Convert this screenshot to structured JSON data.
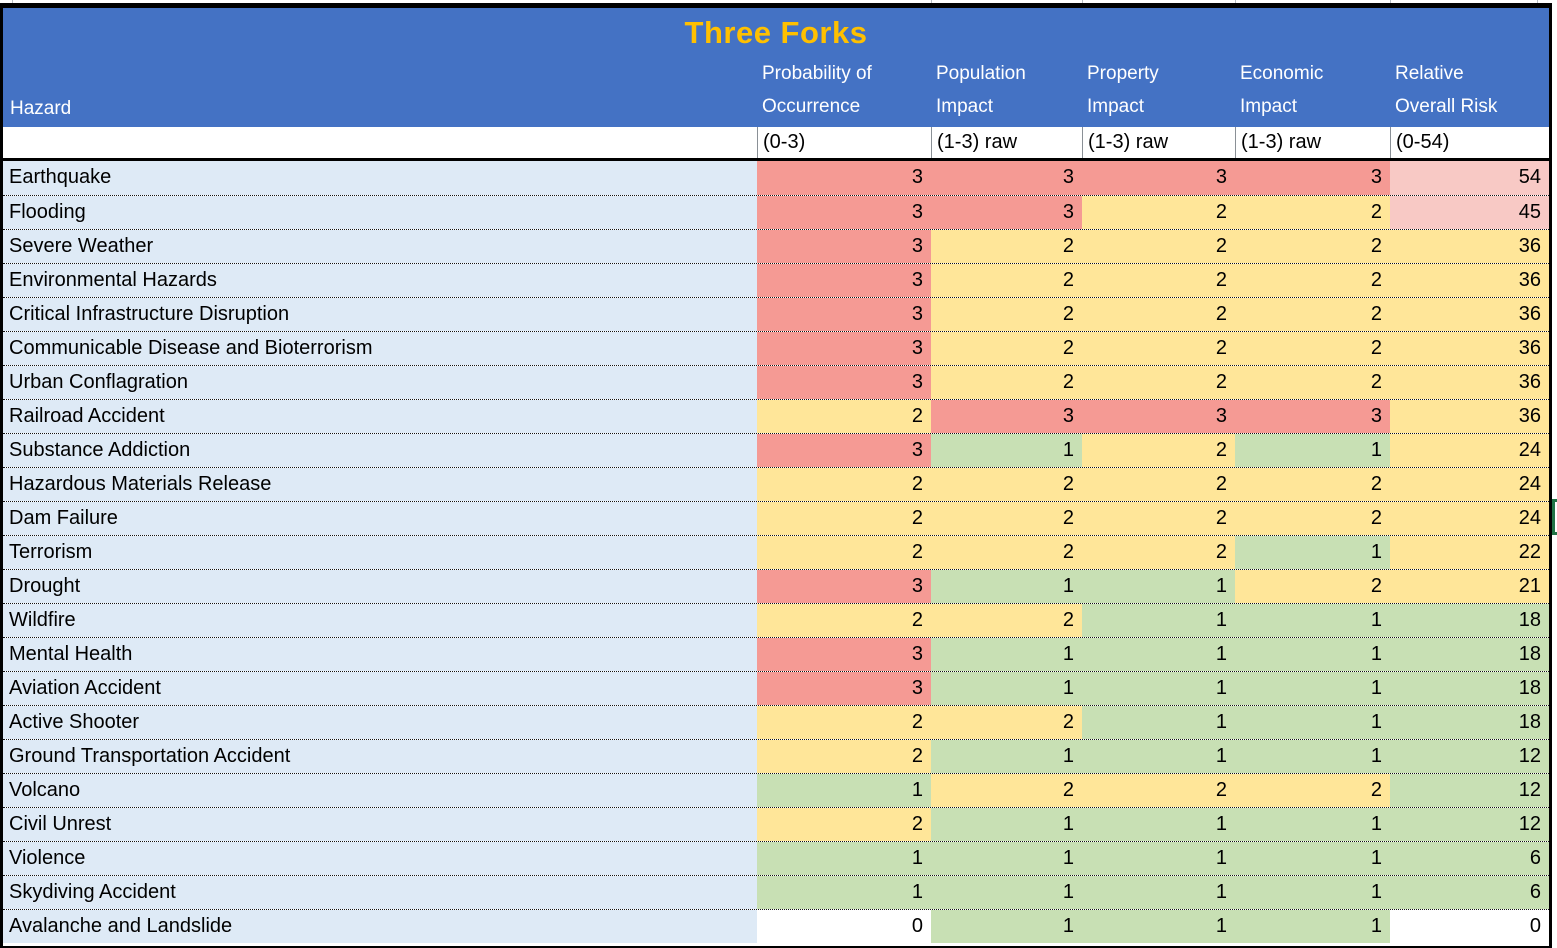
{
  "title": "Three Forks",
  "hazard_header": "Hazard",
  "columns": [
    {
      "label_line1": "Probability of",
      "label_line2": "Occurrence",
      "unit": "(0-3)"
    },
    {
      "label_line1": "Population",
      "label_line2": "Impact",
      "unit": "(1-3) raw"
    },
    {
      "label_line1": "Property",
      "label_line2": "Impact",
      "unit": "(1-3) raw"
    },
    {
      "label_line1": "Economic",
      "label_line2": "Impact",
      "unit": "(1-3) raw"
    },
    {
      "label_line1": "Relative",
      "label_line2": "Overall Risk",
      "unit": "(0-54)"
    }
  ],
  "colors": {
    "header_bg": "#4472C4",
    "title_text": "#FFC000",
    "hazard_bg": "#DEEAF6",
    "score3": "#F59A94",
    "score2": "#FFE699",
    "score1": "#C8E0B4",
    "score0": "#FFFFFF",
    "risk_high": "#F8C9C5",
    "selection_green": "#217346"
  },
  "rows": [
    {
      "hazard": "Earthquake",
      "values": [
        "3",
        "3",
        "3",
        "3",
        "54"
      ],
      "fills": [
        "score3",
        "score3",
        "score3",
        "score3",
        "risk_high"
      ]
    },
    {
      "hazard": "Flooding",
      "values": [
        "3",
        "3",
        "2",
        "2",
        "45"
      ],
      "fills": [
        "score3",
        "score3",
        "score2",
        "score2",
        "risk_high"
      ]
    },
    {
      "hazard": "Severe Weather",
      "values": [
        "3",
        "2",
        "2",
        "2",
        "36"
      ],
      "fills": [
        "score3",
        "score2",
        "score2",
        "score2",
        "score2"
      ]
    },
    {
      "hazard": "Environmental Hazards",
      "values": [
        "3",
        "2",
        "2",
        "2",
        "36"
      ],
      "fills": [
        "score3",
        "score2",
        "score2",
        "score2",
        "score2"
      ]
    },
    {
      "hazard": "Critical Infrastructure Disruption",
      "values": [
        "3",
        "2",
        "2",
        "2",
        "36"
      ],
      "fills": [
        "score3",
        "score2",
        "score2",
        "score2",
        "score2"
      ]
    },
    {
      "hazard": "Communicable Disease and Bioterrorism",
      "values": [
        "3",
        "2",
        "2",
        "2",
        "36"
      ],
      "fills": [
        "score3",
        "score2",
        "score2",
        "score2",
        "score2"
      ]
    },
    {
      "hazard": "Urban Conflagration",
      "values": [
        "3",
        "2",
        "2",
        "2",
        "36"
      ],
      "fills": [
        "score3",
        "score2",
        "score2",
        "score2",
        "score2"
      ]
    },
    {
      "hazard": "Railroad Accident",
      "values": [
        "2",
        "3",
        "3",
        "3",
        "36"
      ],
      "fills": [
        "score2",
        "score3",
        "score3",
        "score3",
        "score2"
      ]
    },
    {
      "hazard": "Substance Addiction",
      "values": [
        "3",
        "1",
        "2",
        "1",
        "24"
      ],
      "fills": [
        "score3",
        "score1",
        "score2",
        "score1",
        "score2"
      ]
    },
    {
      "hazard": "Hazardous Materials Release",
      "values": [
        "2",
        "2",
        "2",
        "2",
        "24"
      ],
      "fills": [
        "score2",
        "score2",
        "score2",
        "score2",
        "score2"
      ]
    },
    {
      "hazard": "Dam Failure",
      "values": [
        "2",
        "2",
        "2",
        "2",
        "24"
      ],
      "fills": [
        "score2",
        "score2",
        "score2",
        "score2",
        "score2"
      ]
    },
    {
      "hazard": "Terrorism",
      "values": [
        "2",
        "2",
        "2",
        "1",
        "22"
      ],
      "fills": [
        "score2",
        "score2",
        "score2",
        "score1",
        "score2"
      ]
    },
    {
      "hazard": "Drought",
      "values": [
        "3",
        "1",
        "1",
        "2",
        "21"
      ],
      "fills": [
        "score3",
        "score1",
        "score1",
        "score2",
        "score2"
      ]
    },
    {
      "hazard": "Wildfire",
      "values": [
        "2",
        "2",
        "1",
        "1",
        "18"
      ],
      "fills": [
        "score2",
        "score2",
        "score1",
        "score1",
        "score1"
      ]
    },
    {
      "hazard": "Mental Health",
      "values": [
        "3",
        "1",
        "1",
        "1",
        "18"
      ],
      "fills": [
        "score3",
        "score1",
        "score1",
        "score1",
        "score1"
      ]
    },
    {
      "hazard": "Aviation Accident",
      "values": [
        "3",
        "1",
        "1",
        "1",
        "18"
      ],
      "fills": [
        "score3",
        "score1",
        "score1",
        "score1",
        "score1"
      ]
    },
    {
      "hazard": "Active Shooter",
      "values": [
        "2",
        "2",
        "1",
        "1",
        "18"
      ],
      "fills": [
        "score2",
        "score2",
        "score1",
        "score1",
        "score1"
      ]
    },
    {
      "hazard": "Ground Transportation Accident",
      "values": [
        "2",
        "1",
        "1",
        "1",
        "12"
      ],
      "fills": [
        "score2",
        "score1",
        "score1",
        "score1",
        "score1"
      ]
    },
    {
      "hazard": "Volcano",
      "values": [
        "1",
        "2",
        "2",
        "2",
        "12"
      ],
      "fills": [
        "score1",
        "score2",
        "score2",
        "score2",
        "score1"
      ]
    },
    {
      "hazard": "Civil Unrest",
      "values": [
        "2",
        "1",
        "1",
        "1",
        "12"
      ],
      "fills": [
        "score2",
        "score1",
        "score1",
        "score1",
        "score1"
      ]
    },
    {
      "hazard": "Violence",
      "values": [
        "1",
        "1",
        "1",
        "1",
        "6"
      ],
      "fills": [
        "score1",
        "score1",
        "score1",
        "score1",
        "score1"
      ]
    },
    {
      "hazard": "Skydiving Accident",
      "values": [
        "1",
        "1",
        "1",
        "1",
        "6"
      ],
      "fills": [
        "score1",
        "score1",
        "score1",
        "score1",
        "score1"
      ]
    },
    {
      "hazard": "Avalanche and Landslide",
      "values": [
        "0",
        "1",
        "1",
        "1",
        "0"
      ],
      "fills": [
        "score0",
        "score1",
        "score1",
        "score1",
        "score0"
      ]
    }
  ]
}
